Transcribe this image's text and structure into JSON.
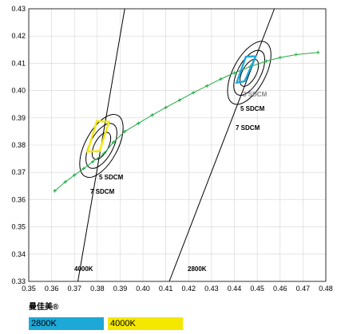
{
  "chart_data": {
    "type": "scatter",
    "title": "",
    "xlabel": "",
    "ylabel": "",
    "xlim": [
      0.35,
      0.48
    ],
    "ylim": [
      0.33,
      0.43
    ],
    "x_ticks": [
      "0.35",
      "0.36",
      "0.37",
      "0.38",
      "0.39",
      "0.40",
      "0.41",
      "0.42",
      "0.43",
      "0.44",
      "0.45",
      "0.46",
      "0.47",
      "0.48"
    ],
    "y_ticks": [
      "0.33",
      "0.34",
      "0.35",
      "0.36",
      "0.37",
      "0.38",
      "0.39",
      "0.40",
      "0.41",
      "0.42",
      "0.43"
    ],
    "grid": true,
    "planckian_locus": {
      "color": "#22aa44",
      "points": [
        [
          0.3614,
          0.3632
        ],
        [
          0.366,
          0.3665
        ],
        [
          0.37,
          0.369
        ],
        [
          0.374,
          0.3714
        ],
        [
          0.378,
          0.3739
        ],
        [
          0.383,
          0.377
        ],
        [
          0.387,
          0.381
        ],
        [
          0.392,
          0.385
        ],
        [
          0.398,
          0.388
        ],
        [
          0.404,
          0.391
        ],
        [
          0.41,
          0.3938
        ],
        [
          0.416,
          0.3965
        ],
        [
          0.422,
          0.3992
        ],
        [
          0.428,
          0.4017
        ],
        [
          0.434,
          0.4042
        ],
        [
          0.44,
          0.4065
        ],
        [
          0.447,
          0.4088
        ],
        [
          0.454,
          0.4108
        ],
        [
          0.46,
          0.4121
        ],
        [
          0.467,
          0.4132
        ],
        [
          0.4766,
          0.414
        ]
      ]
    },
    "cct_lines": [
      {
        "label": "4000K",
        "x1": 0.3715,
        "y1": 0.33,
        "x2": 0.392,
        "y2": 0.43,
        "label_x": 0.3695,
        "label_y": 0.3313
      },
      {
        "label": "2800K",
        "x1": 0.4115,
        "y1": 0.33,
        "x2": 0.4575,
        "y2": 0.43,
        "label_x": 0.417,
        "label_y": 0.3313
      }
    ],
    "sdcm_ellipses": [
      {
        "center": [
          0.3818,
          0.3797
        ],
        "steps": [
          3,
          5,
          7
        ],
        "color": "#000000",
        "labels": [
          "",
          "5 SDCM",
          "7 SDCM"
        ]
      },
      {
        "center": [
          0.4465,
          0.4065
        ],
        "steps": [
          3,
          5,
          7
        ],
        "color": "#000000",
        "labels": [
          "3 SDCM",
          "5 SDCM",
          "7 SDCM"
        ]
      }
    ],
    "bins": [
      {
        "name": "2800K",
        "color": "#1ea8d8",
        "polygon": [
          [
            0.4445,
            0.4034
          ],
          [
            0.441,
            0.4029
          ],
          [
            0.445,
            0.4124
          ],
          [
            0.4493,
            0.4126
          ]
        ]
      },
      {
        "name": "4000K",
        "color": "#f4e800",
        "polygon": [
          [
            0.381,
            0.3778
          ],
          [
            0.3757,
            0.3776
          ],
          [
            0.3798,
            0.3888
          ],
          [
            0.3851,
            0.3886
          ]
        ]
      }
    ]
  },
  "labels": {
    "k4000": "4000K",
    "k2800": "2800K",
    "sdcm3": "3 SDCM",
    "sdcm5_right": "5 SDCM",
    "sdcm7_right": "7 SDCM",
    "sdcm5_left": "5 SDCM",
    "sdcm7_left": "7 SDCM"
  },
  "brand": "曼佳美®",
  "legend": [
    {
      "label": "2800K",
      "color": "#1ea8d8"
    },
    {
      "label": "4000K",
      "color": "#f4e800"
    }
  ]
}
